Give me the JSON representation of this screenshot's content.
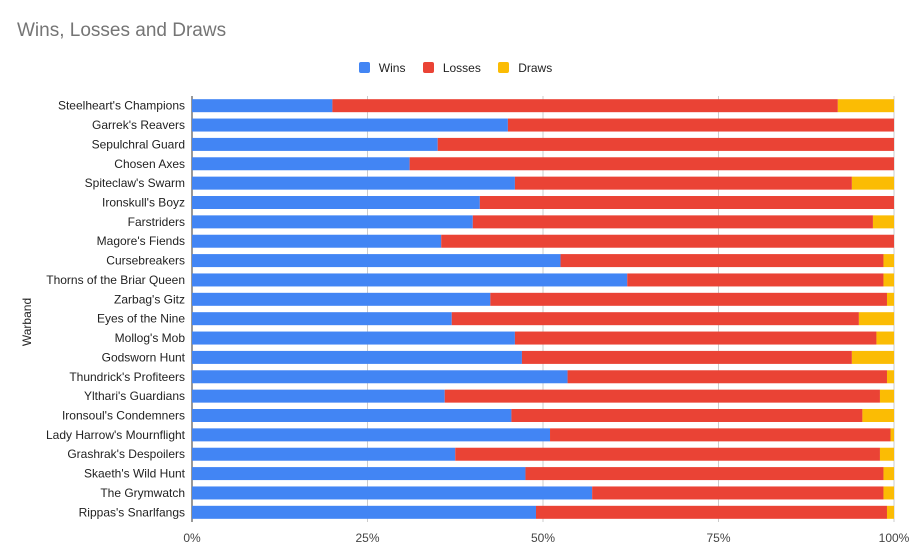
{
  "chart_data": {
    "type": "bar",
    "orientation": "horizontal",
    "stacked": "percent",
    "title": "Wins, Losses and Draws",
    "ylabel": "Warband",
    "xlabel": "",
    "xlim": [
      0,
      100
    ],
    "xticks": [
      "0%",
      "25%",
      "50%",
      "75%",
      "100%"
    ],
    "legend_position": "top",
    "grid": true,
    "categories": [
      "Steelheart's Champions",
      "Garrek's Reavers",
      "Sepulchral Guard",
      "Chosen Axes",
      "Spiteclaw's Swarm",
      "Ironskull's Boyz",
      "Farstriders",
      "Magore's Fiends",
      "Cursebreakers",
      "Thorns of the Briar Queen",
      "Zarbag's Gitz",
      "Eyes of the Nine",
      "Mollog's Mob",
      "Godsworn Hunt",
      "Thundrick's Profiteers",
      "Ylthari's Guardians",
      "Ironsoul's Condemners",
      "Lady Harrow's Mournflight",
      "Grashrak's Despoilers",
      "Skaeth's Wild Hunt",
      "The Grymwatch",
      "Rippas's Snarlfangs"
    ],
    "series": [
      {
        "name": "Wins",
        "color": "#4285f4",
        "values": [
          20,
          45,
          35,
          31,
          46,
          41,
          40,
          35.5,
          52.5,
          62,
          42.5,
          37,
          46,
          47,
          53.5,
          36,
          45.5,
          51,
          37.5,
          47.5,
          57,
          49
        ]
      },
      {
        "name": "Losses",
        "color": "#ea4335",
        "values": [
          72,
          55,
          65,
          69,
          48,
          59,
          57,
          64.5,
          46,
          36.5,
          56.5,
          58,
          51.5,
          47,
          45.5,
          62,
          50,
          48.5,
          60.5,
          51,
          41.5,
          50
        ]
      },
      {
        "name": "Draws",
        "color": "#fbbc04",
        "values": [
          8,
          0,
          0,
          0,
          6,
          0,
          3,
          0,
          1.5,
          1.5,
          1,
          5,
          2.5,
          6,
          1,
          2,
          4.5,
          0.5,
          2,
          1.5,
          1.5,
          1
        ]
      }
    ]
  }
}
